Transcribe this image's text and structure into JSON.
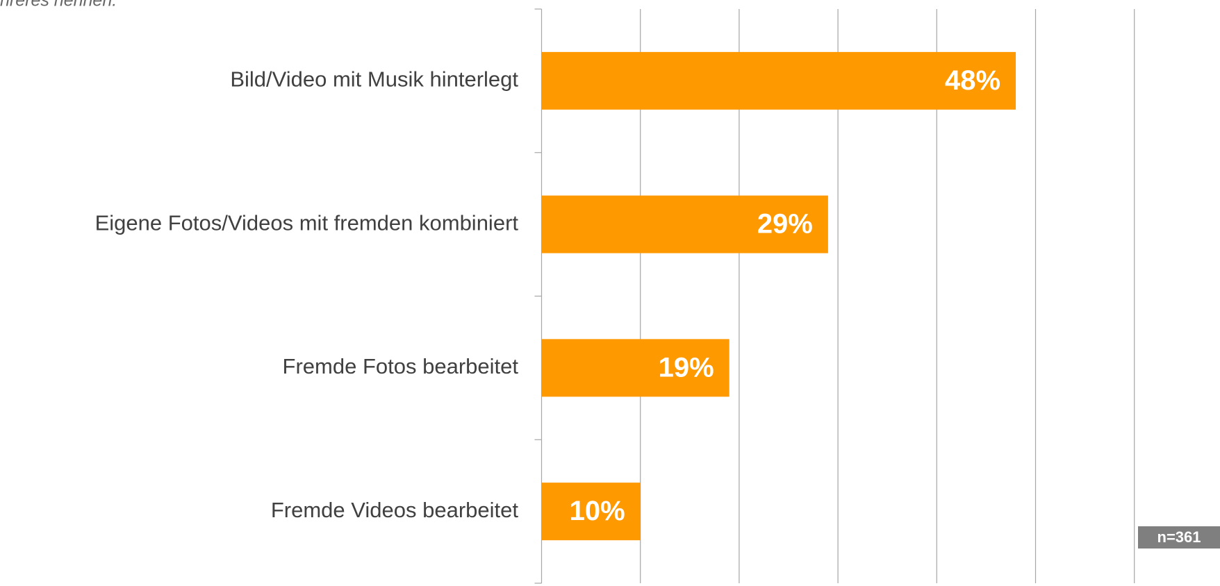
{
  "chart_data": {
    "type": "bar",
    "orientation": "horizontal",
    "subtitle": "hreres nennen.",
    "categories": [
      "Bild/Video mit Musik hinterlegt",
      "Eigene Fotos/Videos mit fremden kombiniert",
      "Fremde Fotos bearbeitet",
      "Fremde Videos bearbeitet"
    ],
    "values": [
      48,
      29,
      19,
      10
    ],
    "value_labels": [
      "48%",
      "29%",
      "19%",
      "10%"
    ],
    "color": "#ff9900",
    "xlim": [
      0,
      60
    ],
    "xticks": [
      0,
      10,
      20,
      30,
      40,
      50,
      60
    ],
    "grid": true,
    "annotation": "n=361"
  }
}
